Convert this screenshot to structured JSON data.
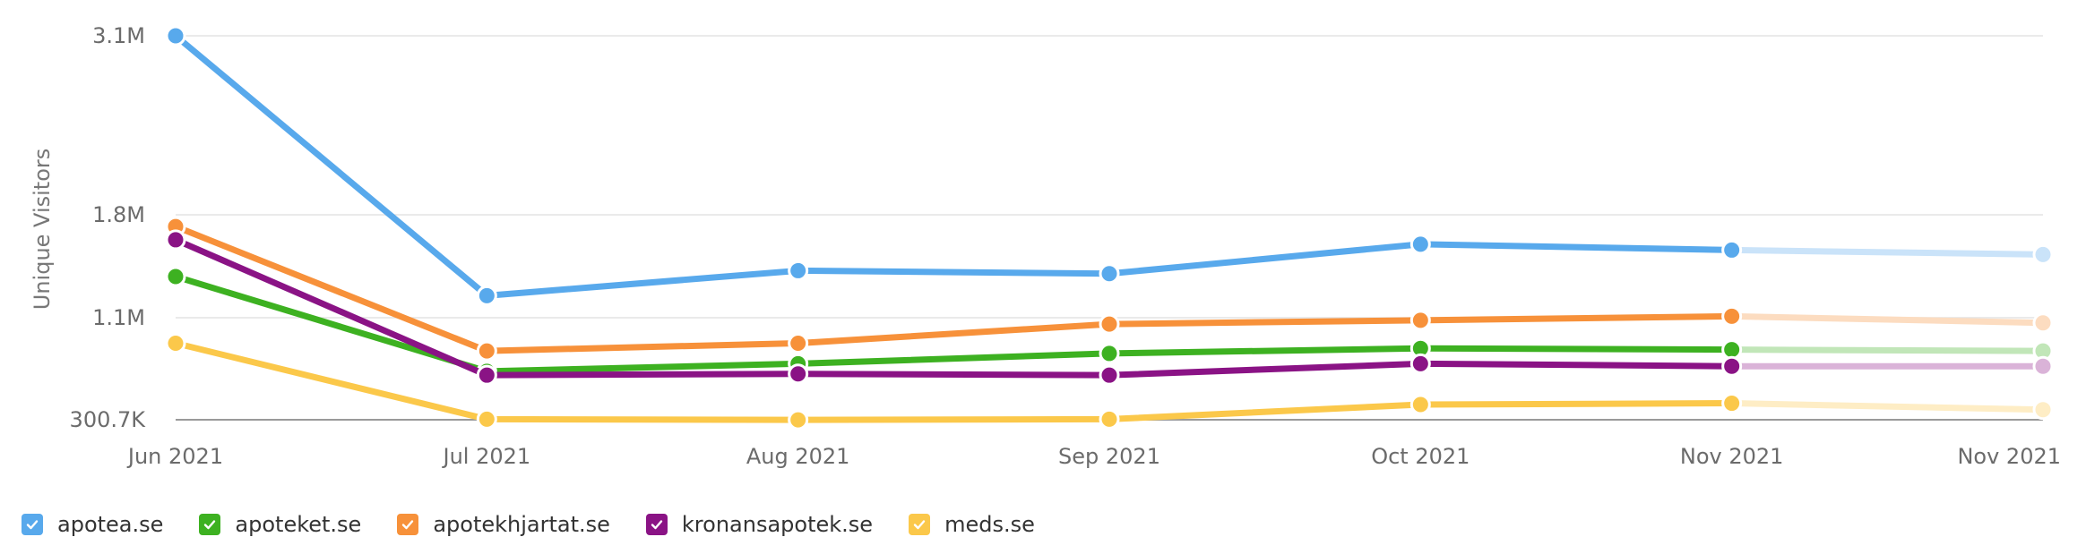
{
  "chart_data": {
    "type": "line",
    "ylabel": "Unique Visitors",
    "xlabel": "",
    "categories": [
      "Jun 2021",
      "Jul 2021",
      "Aug 2021",
      "Sep 2021",
      "Oct 2021",
      "Nov 2021",
      "Nov 2021"
    ],
    "y_ticks": [
      {
        "value": 300700,
        "label": "300.7K"
      },
      {
        "value": 1100000,
        "label": "1.1M"
      },
      {
        "value": 1800000,
        "label": "1.8M"
      },
      {
        "value": 3100000,
        "label": "3.1M"
      }
    ],
    "y_scale": "piecewise-linear between labeled ticks",
    "ylim": [
      300700,
      3100000
    ],
    "grid": true,
    "legend_position": "bottom-left",
    "projected_last_point": true,
    "series": [
      {
        "name": "apotea.se",
        "color": "#58a9ec",
        "values": [
          3100000,
          1250000,
          1420000,
          1400000,
          1600000,
          1560000,
          1530000
        ]
      },
      {
        "name": "apoteket.se",
        "color": "#3db121",
        "values": [
          1380000,
          680000,
          740000,
          820000,
          860000,
          850000,
          840000
        ]
      },
      {
        "name": "apotekhjartat.se",
        "color": "#f7913a",
        "values": [
          1720000,
          840000,
          900000,
          1050000,
          1080000,
          1110000,
          1060000
        ]
      },
      {
        "name": "kronansapotek.se",
        "color": "#8a1385",
        "values": [
          1630000,
          650000,
          660000,
          650000,
          740000,
          720000,
          720000
        ]
      },
      {
        "name": "meds.se",
        "color": "#fbc84a",
        "values": [
          900000,
          305000,
          300000,
          305000,
          420000,
          430000,
          380000
        ]
      }
    ]
  }
}
